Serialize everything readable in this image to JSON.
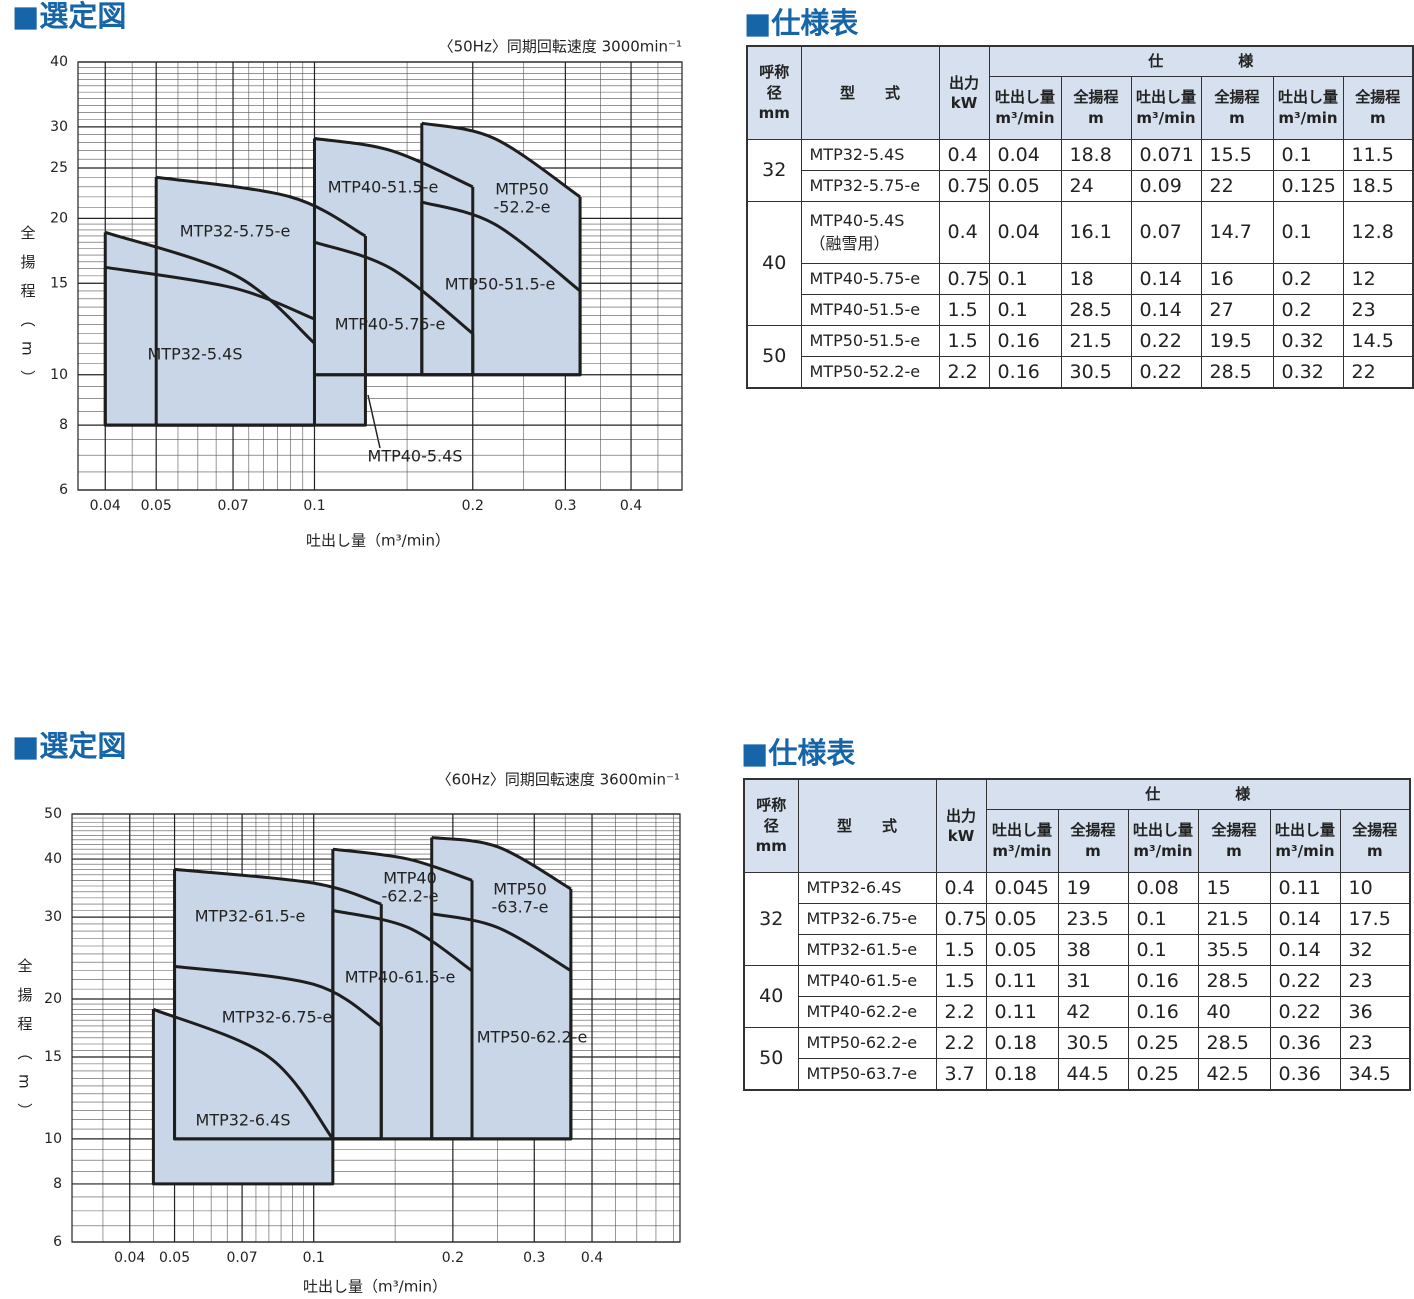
{
  "chart_data": [
    {
      "type": "region",
      "title": "■選定図",
      "note": "〈50Hz〉同期回転速度 3000min⁻¹",
      "x_label": "吐出し量（m³/min）",
      "y_label": "全揚程（m）",
      "xscale": "log",
      "yscale": "log",
      "xlim": [
        0.0355,
        0.5
      ],
      "ylim": [
        6,
        40
      ],
      "xticks": [
        0.04,
        0.05,
        0.07,
        0.1,
        0.2,
        0.3,
        0.4
      ],
      "yticks": [
        6,
        8,
        10,
        15,
        20,
        25,
        30,
        40
      ],
      "grid": true,
      "color": "#c9d6e7",
      "regions": [
        {
          "label": [
            "MTP32-5.4S"
          ],
          "q": [
            0.04,
            0.071,
            0.1
          ],
          "h": [
            18.8,
            15.5,
            11.5
          ],
          "floor": 8
        },
        {
          "label": [
            "MTP32-5.75-e"
          ],
          "q": [
            0.05,
            0.09,
            0.125
          ],
          "h": [
            24,
            22,
            18.5
          ],
          "floor": 8
        },
        {
          "label": [
            "MTP40-5.4S"
          ],
          "q": [
            0.04,
            0.07,
            0.1
          ],
          "h": [
            16.1,
            14.7,
            12.8
          ],
          "floor": 8
        },
        {
          "label": [
            "MTP40-5.75-e"
          ],
          "q": [
            0.1,
            0.14,
            0.2
          ],
          "h": [
            18,
            16,
            12
          ],
          "floor": 10
        },
        {
          "label": [
            "MTP40-51.5-e"
          ],
          "q": [
            0.1,
            0.14,
            0.2
          ],
          "h": [
            28.5,
            27,
            23
          ],
          "floor": 10
        },
        {
          "label": [
            "MTP50-51.5-e"
          ],
          "q": [
            0.16,
            0.22,
            0.32
          ],
          "h": [
            21.5,
            19.5,
            14.5
          ],
          "floor": 10
        },
        {
          "label": [
            "MTP50",
            "-52.2-e"
          ],
          "q": [
            0.16,
            0.22,
            0.32
          ],
          "h": [
            30.5,
            28.5,
            22
          ],
          "floor": 10
        }
      ]
    },
    {
      "type": "region",
      "title": "■選定図",
      "note": "〈60Hz〉同期回転速度 3600min⁻¹",
      "x_label": "吐出し量（m³/min）",
      "y_label": "全揚程（m）",
      "xscale": "log",
      "yscale": "log",
      "xlim": [
        0.03,
        0.62
      ],
      "ylim": [
        6,
        50
      ],
      "xticks": [
        0.04,
        0.05,
        0.07,
        0.1,
        0.2,
        0.3,
        0.4
      ],
      "yticks": [
        6,
        8,
        10,
        15,
        20,
        30,
        40,
        50
      ],
      "grid": true,
      "color": "#c9d6e7",
      "regions": [
        {
          "label": [
            "MTP32-61.5-e"
          ],
          "q": [
            0.05,
            0.1,
            0.14
          ],
          "h": [
            38,
            35.5,
            32
          ],
          "floor": 10
        },
        {
          "label": [
            "MTP40",
            "-62.2-e"
          ],
          "q": [
            0.11,
            0.16,
            0.22
          ],
          "h": [
            42,
            40,
            36
          ],
          "floor": 10
        },
        {
          "label": [
            "MTP50",
            "-63.7-e"
          ],
          "q": [
            0.18,
            0.25,
            0.36
          ],
          "h": [
            44.5,
            42.5,
            34.5
          ],
          "floor": 10
        },
        {
          "label": [
            "MTP40-61.5-e"
          ],
          "q": [
            0.11,
            0.16,
            0.22
          ],
          "h": [
            31,
            28.5,
            23
          ],
          "floor": 10
        },
        {
          "label": [
            "MTP32-6.75-e"
          ],
          "q": [
            0.05,
            0.1,
            0.14
          ],
          "h": [
            23.5,
            21.5,
            17.5
          ],
          "floor": 10
        },
        {
          "label": [
            "MTP50-62.2-e"
          ],
          "q": [
            0.18,
            0.25,
            0.36
          ],
          "h": [
            30.5,
            28.5,
            23
          ],
          "floor": 10
        },
        {
          "label": [
            "MTP32-6.4S"
          ],
          "q": [
            0.045,
            0.08,
            0.11
          ],
          "h": [
            19,
            15,
            10
          ],
          "floor": 8
        }
      ]
    }
  ],
  "tables": [
    {
      "title": "■仕様表",
      "header": {
        "bore": [
          "呼称径",
          "mm"
        ],
        "model": "型　　式",
        "power": [
          "出力",
          "kW"
        ],
        "spec": "仕　　　　　様",
        "flow": [
          "吐出し量",
          "m³/min"
        ],
        "head": [
          "全揚程",
          "m"
        ]
      },
      "groups": [
        {
          "bore": "32",
          "rows": [
            {
              "cells": [
                "MTP32-5.4S",
                "0.4",
                "0.04",
                "18.8",
                "0.071",
                "15.5",
                "0.1",
                "11.5"
              ]
            },
            {
              "cells": [
                "MTP32-5.75-e",
                "0.75",
                "0.05",
                "24",
                "0.09",
                "22",
                "0.125",
                "18.5"
              ]
            }
          ]
        },
        {
          "bore": "40",
          "rows": [
            {
              "cells": [
                "MTP40-5.4S",
                "0.4",
                "0.04",
                "16.1",
                "0.07",
                "14.7",
                "0.1",
                "12.8"
              ],
              "note": "（融雪用）"
            },
            {
              "cells": [
                "MTP40-5.75-e",
                "0.75",
                "0.1",
                "18",
                "0.14",
                "16",
                "0.2",
                "12"
              ]
            },
            {
              "cells": [
                "MTP40-51.5-e",
                "1.5",
                "0.1",
                "28.5",
                "0.14",
                "27",
                "0.2",
                "23"
              ]
            }
          ]
        },
        {
          "bore": "50",
          "rows": [
            {
              "cells": [
                "MTP50-51.5-e",
                "1.5",
                "0.16",
                "21.5",
                "0.22",
                "19.5",
                "0.32",
                "14.5"
              ]
            },
            {
              "cells": [
                "MTP50-52.2-e",
                "2.2",
                "0.16",
                "30.5",
                "0.22",
                "28.5",
                "0.32",
                "22"
              ]
            }
          ]
        }
      ]
    },
    {
      "title": "■仕様表",
      "header": {
        "bore": [
          "呼称径",
          "mm"
        ],
        "model": "型　　式",
        "power": [
          "出力",
          "kW"
        ],
        "spec": "仕　　　　　様",
        "flow": [
          "吐出し量",
          "m³/min"
        ],
        "head": [
          "全揚程",
          "m"
        ]
      },
      "groups": [
        {
          "bore": "32",
          "rows": [
            {
              "cells": [
                "MTP32-6.4S",
                "0.4",
                "0.045",
                "19",
                "0.08",
                "15",
                "0.11",
                "10"
              ]
            },
            {
              "cells": [
                "MTP32-6.75-e",
                "0.75",
                "0.05",
                "23.5",
                "0.1",
                "21.5",
                "0.14",
                "17.5"
              ]
            },
            {
              "cells": [
                "MTP32-61.5-e",
                "1.5",
                "0.05",
                "38",
                "0.1",
                "35.5",
                "0.14",
                "32"
              ]
            }
          ]
        },
        {
          "bore": "40",
          "rows": [
            {
              "cells": [
                "MTP40-61.5-e",
                "1.5",
                "0.11",
                "31",
                "0.16",
                "28.5",
                "0.22",
                "23"
              ]
            },
            {
              "cells": [
                "MTP40-62.2-e",
                "2.2",
                "0.11",
                "42",
                "0.16",
                "40",
                "0.22",
                "36"
              ]
            }
          ]
        },
        {
          "bore": "50",
          "rows": [
            {
              "cells": [
                "MTP50-62.2-e",
                "2.2",
                "0.18",
                "30.5",
                "0.25",
                "28.5",
                "0.36",
                "23"
              ]
            },
            {
              "cells": [
                "MTP50-63.7-e",
                "3.7",
                "0.18",
                "44.5",
                "0.25",
                "42.5",
                "0.36",
                "34.5"
              ]
            }
          ]
        }
      ]
    }
  ]
}
